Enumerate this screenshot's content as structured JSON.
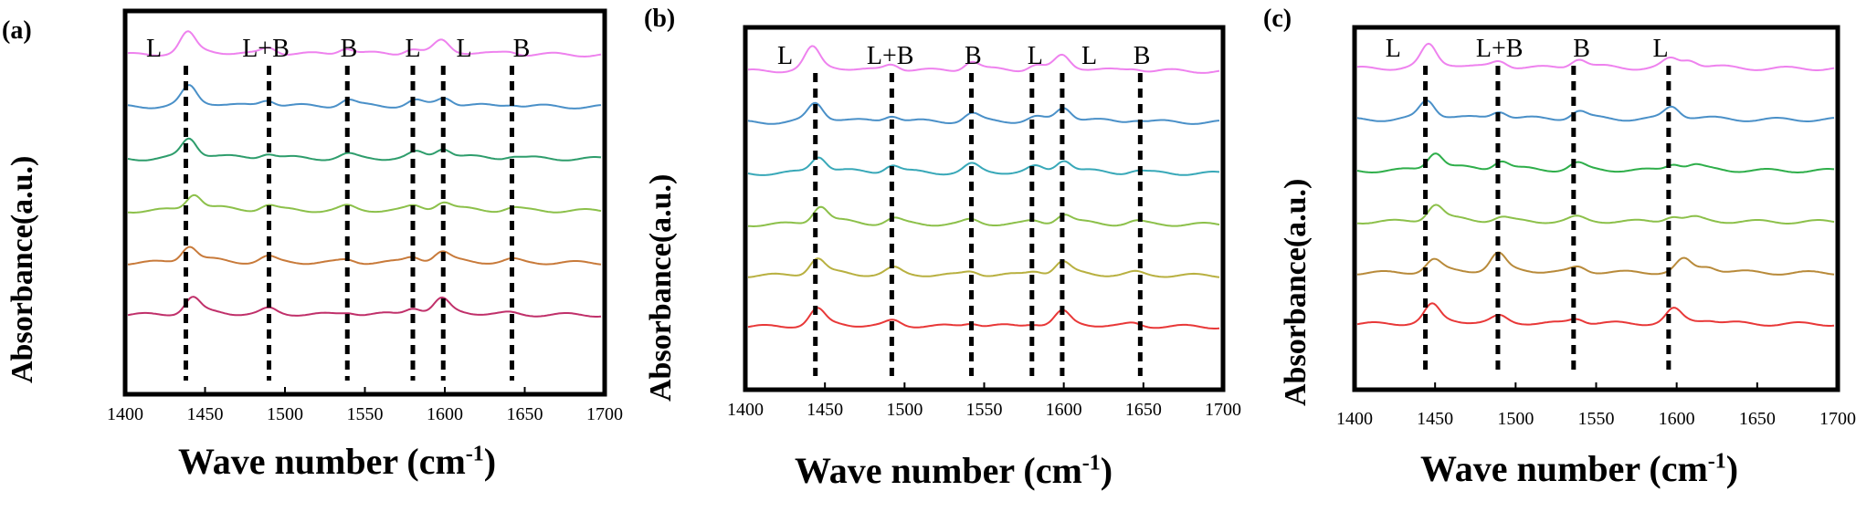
{
  "chart_data": [
    {
      "type": "line",
      "panel_label": "(a)",
      "xlabel": "Wave number (cm",
      "xlabel_sup": "-1",
      "xlabel_close": ")",
      "ylabel": "Absorbance(a.u.)",
      "xlim": [
        1400,
        1700
      ],
      "xticks": [
        "1400",
        "1450",
        "1500",
        "1550",
        "1600",
        "1650",
        "1700"
      ],
      "band_labels": [
        {
          "text": "L",
          "x": 1418
        },
        {
          "text": "L+B",
          "x": 1488
        },
        {
          "text": "B",
          "x": 1540
        },
        {
          "text": "L",
          "x": 1580
        },
        {
          "text": "L",
          "x": 1612
        },
        {
          "text": "B",
          "x": 1648
        }
      ],
      "marker_lines": [
        1438,
        1490,
        1539,
        1580,
        1599,
        1642
      ],
      "series_colors": [
        "#ee82ee",
        "#4a90c8",
        "#2e9d6c",
        "#8cc04a",
        "#c87a3a",
        "#c0306a"
      ],
      "peaks": [
        [
          {
            "x": 1439,
            "h": 1.5
          },
          {
            "x": 1490,
            "h": 0.5
          },
          {
            "x": 1538,
            "h": 0.5
          },
          {
            "x": 1579,
            "h": 0.4
          },
          {
            "x": 1598,
            "h": 0.9
          },
          {
            "x": 1641,
            "h": 0.2
          }
        ],
        [
          {
            "x": 1440,
            "h": 1.4
          },
          {
            "x": 1489,
            "h": 0.5
          },
          {
            "x": 1539,
            "h": 0.5
          },
          {
            "x": 1581,
            "h": 0.4
          },
          {
            "x": 1600,
            "h": 0.6
          },
          {
            "x": 1642,
            "h": 0.2
          }
        ],
        [
          {
            "x": 1440,
            "h": 1.4
          },
          {
            "x": 1489,
            "h": 0.4
          },
          {
            "x": 1539,
            "h": 0.3
          },
          {
            "x": 1582,
            "h": 0.4
          },
          {
            "x": 1599,
            "h": 0.7
          },
          {
            "x": 1642,
            "h": 0.2
          }
        ],
        [
          {
            "x": 1443,
            "h": 1.2
          },
          {
            "x": 1489,
            "h": 0.4
          },
          {
            "x": 1539,
            "h": 0.3
          },
          {
            "x": 1581,
            "h": 0.3
          },
          {
            "x": 1599,
            "h": 0.6
          },
          {
            "x": 1642,
            "h": 0.2
          }
        ],
        [
          {
            "x": 1440,
            "h": 1.2
          },
          {
            "x": 1489,
            "h": 0.4
          },
          {
            "x": 1539,
            "h": 0.2
          },
          {
            "x": 1580,
            "h": 0.4
          },
          {
            "x": 1598,
            "h": 0.7
          },
          {
            "x": 1642,
            "h": 0.2
          }
        ],
        [
          {
            "x": 1442,
            "h": 1.2
          },
          {
            "x": 1490,
            "h": 0.4
          },
          {
            "x": 1540,
            "h": 0.2
          },
          {
            "x": 1580,
            "h": 0.5
          },
          {
            "x": 1598,
            "h": 1.0
          },
          {
            "x": 1641,
            "h": 0.1
          }
        ]
      ]
    },
    {
      "type": "line",
      "panel_label": "(b)",
      "xlabel": "Wave number (cm",
      "xlabel_sup": "-1",
      "xlabel_close": ")",
      "ylabel": "Absorbance(a.u.)",
      "xlim": [
        1400,
        1700
      ],
      "xticks": [
        "1400",
        "1450",
        "1500",
        "1550",
        "1600",
        "1650",
        "1700"
      ],
      "band_labels": [
        {
          "text": "L",
          "x": 1425
        },
        {
          "text": "L+B",
          "x": 1491
        },
        {
          "text": "B",
          "x": 1543
        },
        {
          "text": "L",
          "x": 1582
        },
        {
          "text": "L",
          "x": 1616
        },
        {
          "text": "B",
          "x": 1649
        }
      ],
      "marker_lines": [
        1444,
        1492,
        1542,
        1580,
        1599,
        1648
      ],
      "series_colors": [
        "#ee82ee",
        "#4a90c8",
        "#38a8b8",
        "#8cc04a",
        "#b8b040",
        "#e83838"
      ],
      "peaks": [
        [
          {
            "x": 1442,
            "h": 1.6
          },
          {
            "x": 1492,
            "h": 0.5
          },
          {
            "x": 1542,
            "h": 0.7
          },
          {
            "x": 1582,
            "h": 0.4
          },
          {
            "x": 1599,
            "h": 1.0
          },
          {
            "x": 1645,
            "h": 0.2
          }
        ],
        [
          {
            "x": 1444,
            "h": 1.3
          },
          {
            "x": 1492,
            "h": 0.5
          },
          {
            "x": 1542,
            "h": 0.6
          },
          {
            "x": 1582,
            "h": 0.3
          },
          {
            "x": 1600,
            "h": 1.0
          },
          {
            "x": 1645,
            "h": 0.2
          }
        ],
        [
          {
            "x": 1446,
            "h": 1.2
          },
          {
            "x": 1492,
            "h": 0.6
          },
          {
            "x": 1542,
            "h": 0.6
          },
          {
            "x": 1582,
            "h": 0.4
          },
          {
            "x": 1600,
            "h": 0.9
          },
          {
            "x": 1645,
            "h": 0.2
          }
        ],
        [
          {
            "x": 1447,
            "h": 1.3
          },
          {
            "x": 1493,
            "h": 0.4
          },
          {
            "x": 1542,
            "h": 0.3
          },
          {
            "x": 1581,
            "h": 0.2
          },
          {
            "x": 1600,
            "h": 0.7
          },
          {
            "x": 1645,
            "h": 0.2
          }
        ],
        [
          {
            "x": 1445,
            "h": 1.2
          },
          {
            "x": 1493,
            "h": 0.5
          },
          {
            "x": 1542,
            "h": 0.3
          },
          {
            "x": 1582,
            "h": 0.3
          },
          {
            "x": 1599,
            "h": 0.9
          },
          {
            "x": 1645,
            "h": 0.2
          }
        ],
        [
          {
            "x": 1445,
            "h": 1.2
          },
          {
            "x": 1493,
            "h": 0.4
          },
          {
            "x": 1542,
            "h": 0.3
          },
          {
            "x": 1580,
            "h": 0.2
          },
          {
            "x": 1599,
            "h": 1.0
          },
          {
            "x": 1644,
            "h": 0.2
          }
        ]
      ]
    },
    {
      "type": "line",
      "panel_label": "(c)",
      "xlabel": "Wave number (cm",
      "xlabel_sup": "-1",
      "xlabel_close": ")",
      "ylabel": "Absorbance(a.u.)",
      "xlim": [
        1400,
        1700
      ],
      "xticks": [
        "1400",
        "1450",
        "1500",
        "1550",
        "1600",
        "1650",
        "1700"
      ],
      "band_labels": [
        {
          "text": "L",
          "x": 1424
        },
        {
          "text": "L+B",
          "x": 1490
        },
        {
          "text": "B",
          "x": 1541
        },
        {
          "text": "L",
          "x": 1590
        }
      ],
      "marker_lines": [
        1444,
        1489,
        1536,
        1595
      ],
      "series_colors": [
        "#ee82ee",
        "#4a90c8",
        "#2eae4a",
        "#8cc04a",
        "#b88a3a",
        "#e83838"
      ],
      "peaks": [
        [
          {
            "x": 1446,
            "h": 1.6
          },
          {
            "x": 1490,
            "h": 0.5
          },
          {
            "x": 1539,
            "h": 0.7
          },
          {
            "x": 1596,
            "h": 0.6
          },
          {
            "x": 1608,
            "h": 0.5
          }
        ],
        [
          {
            "x": 1445,
            "h": 1.3
          },
          {
            "x": 1490,
            "h": 0.6
          },
          {
            "x": 1539,
            "h": 0.6
          },
          {
            "x": 1597,
            "h": 0.9
          }
        ],
        [
          {
            "x": 1450,
            "h": 1.3
          },
          {
            "x": 1491,
            "h": 0.7
          },
          {
            "x": 1538,
            "h": 0.5
          },
          {
            "x": 1598,
            "h": 0.5
          },
          {
            "x": 1611,
            "h": 0.3
          }
        ],
        [
          {
            "x": 1450,
            "h": 1.2
          },
          {
            "x": 1491,
            "h": 0.3
          },
          {
            "x": 1538,
            "h": 0.3
          },
          {
            "x": 1597,
            "h": 0.4
          },
          {
            "x": 1611,
            "h": 0.2
          }
        ],
        [
          {
            "x": 1449,
            "h": 0.9
          },
          {
            "x": 1489,
            "h": 1.3
          },
          {
            "x": 1539,
            "h": 0.4
          },
          {
            "x": 1604,
            "h": 0.9
          },
          {
            "x": 1620,
            "h": 0.3
          }
        ],
        [
          {
            "x": 1448,
            "h": 1.3
          },
          {
            "x": 1490,
            "h": 0.5
          },
          {
            "x": 1538,
            "h": 0.4
          },
          {
            "x": 1598,
            "h": 1.0
          },
          {
            "x": 1620,
            "h": 0.2
          }
        ]
      ]
    }
  ]
}
